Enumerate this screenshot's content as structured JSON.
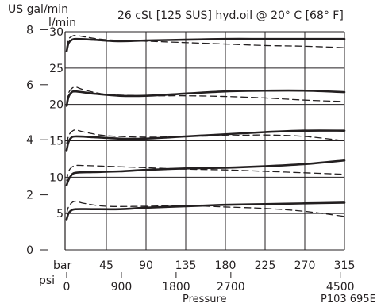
{
  "chart_data": {
    "type": "line",
    "title": "26 cSt [125 SUS] hyd.oil @ 20° C [68° F]",
    "xlabel": "Pressure",
    "x_unit_primary": "bar",
    "x_unit_secondary": "psi",
    "ylabel_left": "US gal/min",
    "ylabel_right": "l/min",
    "figure_id": "P103 695E",
    "xlim": [
      0,
      315
    ],
    "ylim": [
      0,
      30
    ],
    "grid": true,
    "x_ticks_bar": [
      45,
      90,
      135,
      180,
      225,
      270,
      315
    ],
    "x_tick_labels_bar": [
      "45",
      "90",
      "135",
      "180",
      "225",
      "270",
      "315"
    ],
    "x_tick_labels_psi": [
      {
        "value": 0,
        "label": "0"
      },
      {
        "value": 900,
        "label": "900"
      },
      {
        "value": 1800,
        "label": "1800"
      },
      {
        "value": 2700,
        "label": "2700"
      },
      {
        "value": 4500,
        "label": "4500"
      }
    ],
    "y_ticks_lpm": [
      5,
      10,
      15,
      20,
      25,
      30
    ],
    "y_tick_labels_lpm": [
      "5",
      "10",
      "15",
      "20",
      "25",
      "30"
    ],
    "y_ticks_gpm": [
      0,
      2,
      4,
      6,
      8
    ],
    "y_tick_labels_gpm": [
      "0",
      "2",
      "4",
      "6",
      "8"
    ],
    "series": [
      {
        "style": "solid",
        "x": [
          0,
          2,
          5,
          10,
          30,
          60,
          90,
          135,
          180,
          225,
          270,
          315
        ],
        "y": [
          4.2,
          5.0,
          5.4,
          5.6,
          5.6,
          5.6,
          5.8,
          6.0,
          6.2,
          6.3,
          6.4,
          6.5
        ]
      },
      {
        "style": "dashed",
        "x": [
          0,
          2,
          5,
          10,
          20,
          45,
          90,
          135,
          180,
          225,
          270,
          315
        ],
        "y": [
          5.0,
          5.9,
          6.4,
          6.7,
          6.4,
          6.0,
          6.0,
          6.1,
          5.9,
          5.7,
          5.3,
          4.6
        ]
      },
      {
        "style": "solid",
        "x": [
          0,
          2,
          5,
          10,
          30,
          60,
          90,
          135,
          180,
          225,
          270,
          315
        ],
        "y": [
          8.9,
          9.6,
          10.2,
          10.6,
          10.7,
          10.8,
          11.0,
          11.2,
          11.3,
          11.5,
          11.8,
          12.3
        ]
      },
      {
        "style": "dashed",
        "x": [
          0,
          2,
          5,
          10,
          20,
          45,
          90,
          135,
          180,
          225,
          270,
          315
        ],
        "y": [
          9.5,
          10.7,
          11.3,
          11.6,
          11.6,
          11.5,
          11.3,
          11.1,
          11.0,
          10.8,
          10.6,
          10.4
        ]
      },
      {
        "style": "solid",
        "x": [
          0,
          2,
          5,
          10,
          30,
          60,
          90,
          135,
          180,
          225,
          270,
          315
        ],
        "y": [
          13.7,
          14.8,
          15.4,
          15.6,
          15.5,
          15.3,
          15.3,
          15.6,
          15.9,
          16.2,
          16.4,
          16.4
        ]
      },
      {
        "style": "dashed",
        "x": [
          0,
          2,
          5,
          10,
          20,
          45,
          90,
          135,
          180,
          225,
          270,
          315
        ],
        "y": [
          14.6,
          15.6,
          16.2,
          16.5,
          16.2,
          15.7,
          15.5,
          15.6,
          15.7,
          15.8,
          15.6,
          15.0
        ]
      },
      {
        "style": "solid",
        "x": [
          0,
          2,
          5,
          10,
          30,
          60,
          90,
          135,
          180,
          225,
          270,
          315
        ],
        "y": [
          19.8,
          21.0,
          21.6,
          21.8,
          21.5,
          21.2,
          21.2,
          21.5,
          21.8,
          21.9,
          21.9,
          21.7
        ]
      },
      {
        "style": "dashed",
        "x": [
          0,
          2,
          5,
          10,
          20,
          45,
          90,
          135,
          180,
          225,
          270,
          315
        ],
        "y": [
          20.3,
          21.5,
          22.1,
          22.4,
          22.0,
          21.4,
          21.2,
          21.2,
          21.1,
          20.9,
          20.6,
          20.4
        ]
      },
      {
        "style": "solid",
        "x": [
          0,
          2,
          5,
          10,
          30,
          60,
          90,
          135,
          180,
          225,
          270,
          315
        ],
        "y": [
          27.3,
          28.4,
          28.8,
          29.0,
          28.9,
          28.7,
          28.8,
          28.9,
          29.0,
          29.0,
          29.0,
          29.0
        ]
      },
      {
        "style": "dashed",
        "x": [
          0,
          2,
          5,
          10,
          20,
          45,
          90,
          135,
          180,
          225,
          270,
          315
        ],
        "y": [
          27.8,
          28.9,
          29.3,
          29.5,
          29.3,
          28.9,
          28.7,
          28.5,
          28.3,
          28.1,
          28.0,
          27.8
        ]
      }
    ]
  }
}
